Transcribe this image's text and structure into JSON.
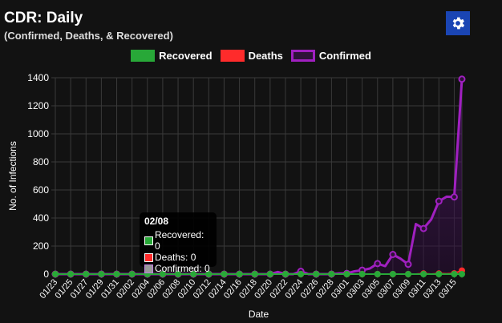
{
  "header": {
    "title": "CDR: Daily",
    "subtitle": "(Confirmed, Deaths, & Recovered)",
    "settings_icon": "gear-icon"
  },
  "colors": {
    "recovered": "#28a838",
    "deaths": "#ff2b2b",
    "confirmed": "#a020c0",
    "accent": "#1a45b4"
  },
  "chart_data": {
    "type": "line",
    "xlabel": "Date",
    "ylabel": "No. of Infections",
    "ylim": [
      0,
      1400
    ],
    "yticks": [
      "0",
      "200",
      "400",
      "600",
      "800",
      "1000",
      "1200",
      "1400"
    ],
    "grid": true,
    "legend_position": "top",
    "x": [
      "01/23",
      "01/24",
      "01/25",
      "01/26",
      "01/27",
      "01/28",
      "01/29",
      "01/30",
      "01/31",
      "02/01",
      "02/02",
      "02/03",
      "02/04",
      "02/05",
      "02/06",
      "02/07",
      "02/08",
      "02/09",
      "02/10",
      "02/11",
      "02/12",
      "02/13",
      "02/14",
      "02/15",
      "02/16",
      "02/17",
      "02/18",
      "02/19",
      "02/20",
      "02/21",
      "02/22",
      "02/23",
      "02/24",
      "02/25",
      "02/26",
      "02/27",
      "02/28",
      "02/29",
      "03/01",
      "03/02",
      "03/03",
      "03/04",
      "03/05",
      "03/06",
      "03/07",
      "03/08",
      "03/09",
      "03/10",
      "03/11",
      "03/12",
      "03/13",
      "03/14",
      "03/15",
      "03/16"
    ],
    "series": [
      {
        "name": "Recovered",
        "values": [
          0,
          0,
          0,
          0,
          0,
          0,
          0,
          0,
          0,
          0,
          0,
          0,
          0,
          0,
          0,
          0,
          0,
          0,
          0,
          0,
          0,
          0,
          0,
          0,
          0,
          0,
          0,
          0,
          0,
          0,
          0,
          0,
          0,
          0,
          0,
          0,
          0,
          0,
          0,
          0,
          0,
          0,
          0,
          0,
          0,
          0,
          0,
          0,
          0,
          0,
          0,
          0,
          0,
          0
        ]
      },
      {
        "name": "Deaths",
        "values": [
          0,
          0,
          0,
          0,
          0,
          0,
          0,
          0,
          0,
          0,
          0,
          0,
          0,
          0,
          0,
          0,
          0,
          0,
          0,
          0,
          0,
          0,
          0,
          0,
          0,
          0,
          0,
          0,
          0,
          0,
          0,
          0,
          0,
          0,
          0,
          0,
          0,
          0,
          0,
          0,
          0,
          0,
          0,
          0,
          0,
          0,
          0,
          0,
          4,
          0,
          4,
          2,
          5,
          25
        ]
      },
      {
        "name": "Confirmed",
        "values": [
          0,
          0,
          0,
          0,
          0,
          0,
          0,
          0,
          0,
          0,
          0,
          0,
          0,
          0,
          0,
          0,
          0,
          0,
          0,
          0,
          0,
          0,
          0,
          0,
          0,
          0,
          0,
          0,
          0,
          15,
          0,
          0,
          20,
          0,
          0,
          0,
          0,
          5,
          5,
          20,
          28,
          40,
          75,
          57,
          140,
          110,
          70,
          357,
          325,
          390,
          520,
          552,
          550,
          1390
        ]
      }
    ]
  },
  "tooltip": {
    "title": "02/08",
    "lines": [
      "Recovered: 0",
      "Deaths: 0",
      "Confirmed: 0"
    ]
  }
}
